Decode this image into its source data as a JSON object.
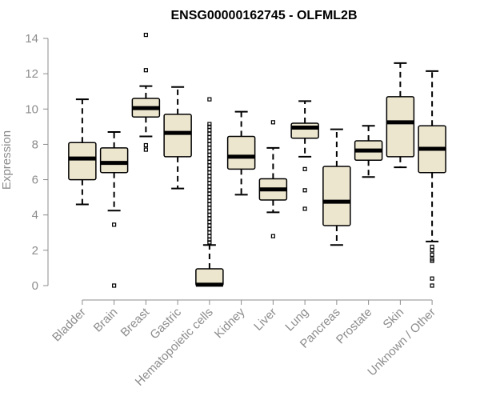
{
  "chart_data": {
    "type": "boxplot",
    "title": "ENSG00000162745 - OLFML2B",
    "xlabel": "",
    "ylabel": "Expression",
    "ylim": [
      0,
      14
    ],
    "yticks": [
      0,
      2,
      4,
      6,
      8,
      10,
      12,
      14
    ],
    "grid": false,
    "colors": {
      "box_fill": "#ede6cf",
      "box_stroke": "#000000",
      "axis": "#8c8c8c",
      "median": "#000000"
    },
    "categories": [
      "Bladder",
      "Brain",
      "Breast",
      "Gastric",
      "Hematopoietic cells",
      "Kidney",
      "Liver",
      "Lung",
      "Pancreas",
      "Prostate",
      "Skin",
      "Unknown / Other"
    ],
    "boxes": [
      {
        "name": "Bladder",
        "whisker_low": 4.6,
        "q1": 6.0,
        "median": 7.2,
        "q3": 8.1,
        "whisker_high": 10.55,
        "outliers": []
      },
      {
        "name": "Brain",
        "whisker_low": 4.25,
        "q1": 6.4,
        "median": 6.95,
        "q3": 7.8,
        "whisker_high": 8.7,
        "outliers": [
          3.45,
          0.0
        ]
      },
      {
        "name": "Breast",
        "whisker_low": 8.45,
        "q1": 9.55,
        "median": 10.05,
        "q3": 10.6,
        "whisker_high": 11.3,
        "outliers": [
          14.2,
          12.2,
          7.95,
          7.7
        ]
      },
      {
        "name": "Gastric",
        "whisker_low": 5.5,
        "q1": 7.3,
        "median": 8.65,
        "q3": 9.7,
        "whisker_high": 11.25,
        "outliers": []
      },
      {
        "name": "Hematopoietic cells",
        "whisker_low": 0.0,
        "q1": 0.0,
        "median": 0.05,
        "q3": 0.95,
        "whisker_high": 2.3,
        "outliers": [
          10.55,
          9.15,
          9.0,
          8.8,
          8.6,
          8.4,
          8.2,
          8.0,
          7.8,
          7.6,
          7.4,
          7.2,
          7.0,
          6.8,
          6.6,
          6.4,
          6.2,
          6.0,
          5.8,
          5.6,
          5.4,
          5.2,
          5.0,
          4.8,
          4.6,
          4.4,
          4.2,
          4.0,
          3.8,
          3.6,
          3.4,
          3.2,
          3.0,
          2.8,
          2.6,
          2.45
        ]
      },
      {
        "name": "Kidney",
        "whisker_low": 5.15,
        "q1": 6.6,
        "median": 7.3,
        "q3": 8.45,
        "whisker_high": 9.85,
        "outliers": []
      },
      {
        "name": "Liver",
        "whisker_low": 4.15,
        "q1": 4.85,
        "median": 5.45,
        "q3": 6.05,
        "whisker_high": 7.8,
        "outliers": [
          9.25,
          2.8
        ]
      },
      {
        "name": "Lung",
        "whisker_low": 7.3,
        "q1": 8.35,
        "median": 8.95,
        "q3": 9.2,
        "whisker_high": 10.45,
        "outliers": [
          6.6,
          5.4,
          4.35
        ]
      },
      {
        "name": "Pancreas",
        "whisker_low": 2.3,
        "q1": 3.4,
        "median": 4.75,
        "q3": 6.75,
        "whisker_high": 8.85,
        "outliers": []
      },
      {
        "name": "Prostate",
        "whisker_low": 6.15,
        "q1": 7.1,
        "median": 7.65,
        "q3": 8.2,
        "whisker_high": 9.05,
        "outliers": []
      },
      {
        "name": "Skin",
        "whisker_low": 6.7,
        "q1": 7.3,
        "median": 9.25,
        "q3": 10.7,
        "whisker_high": 12.6,
        "outliers": []
      },
      {
        "name": "Unknown / Other",
        "whisker_low": 2.5,
        "q1": 6.4,
        "median": 7.75,
        "q3": 9.05,
        "whisker_high": 12.15,
        "outliers": [
          2.2,
          2.0,
          1.75,
          1.5,
          1.4,
          0.4,
          0.0
        ]
      }
    ]
  }
}
